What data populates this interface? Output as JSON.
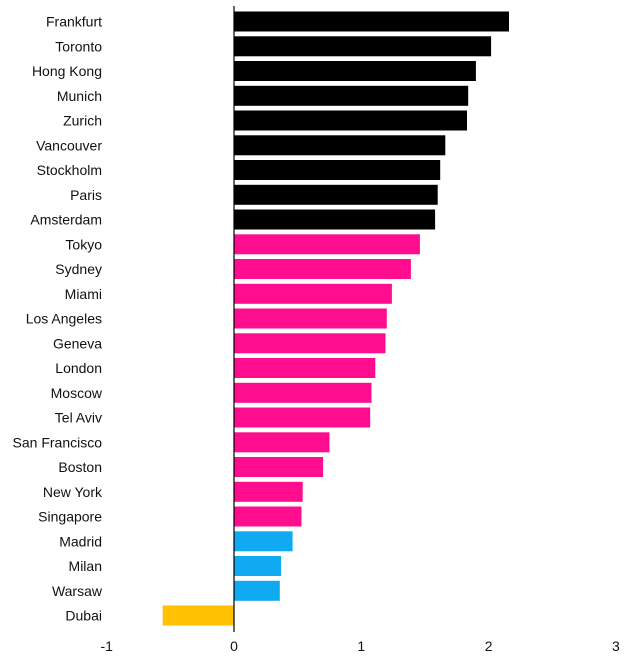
{
  "chart_data": {
    "type": "bar",
    "orientation": "horizontal",
    "categories": [
      "Frankfurt",
      "Toronto",
      "Hong Kong",
      "Munich",
      "Zurich",
      "Vancouver",
      "Stockholm",
      "Paris",
      "Amsterdam",
      "Tokyo",
      "Sydney",
      "Miami",
      "Los Angeles",
      "Geneva",
      "London",
      "Moscow",
      "Tel Aviv",
      "San Francisco",
      "Boston",
      "New York",
      "Singapore",
      "Madrid",
      "Milan",
      "Warsaw",
      "Dubai"
    ],
    "values": [
      2.16,
      2.02,
      1.9,
      1.84,
      1.83,
      1.66,
      1.62,
      1.6,
      1.58,
      1.46,
      1.39,
      1.24,
      1.2,
      1.19,
      1.11,
      1.08,
      1.07,
      0.75,
      0.7,
      0.54,
      0.53,
      0.46,
      0.37,
      0.36,
      -0.56
    ],
    "bar_colors": [
      "#000000",
      "#000000",
      "#000000",
      "#000000",
      "#000000",
      "#000000",
      "#000000",
      "#000000",
      "#000000",
      "#ff0d8f",
      "#ff0d8f",
      "#ff0d8f",
      "#ff0d8f",
      "#ff0d8f",
      "#ff0d8f",
      "#ff0d8f",
      "#ff0d8f",
      "#ff0d8f",
      "#ff0d8f",
      "#ff0d8f",
      "#ff0d8f",
      "#10aaf3",
      "#10aaf3",
      "#10aaf3",
      "#ffc100"
    ],
    "x_ticks": [
      "-1",
      "0",
      "1",
      "2",
      "3"
    ],
    "xlim": [
      -1,
      3
    ],
    "title": "",
    "xlabel": "",
    "ylabel": "",
    "grid": false,
    "zero_line_color": "#000000"
  }
}
